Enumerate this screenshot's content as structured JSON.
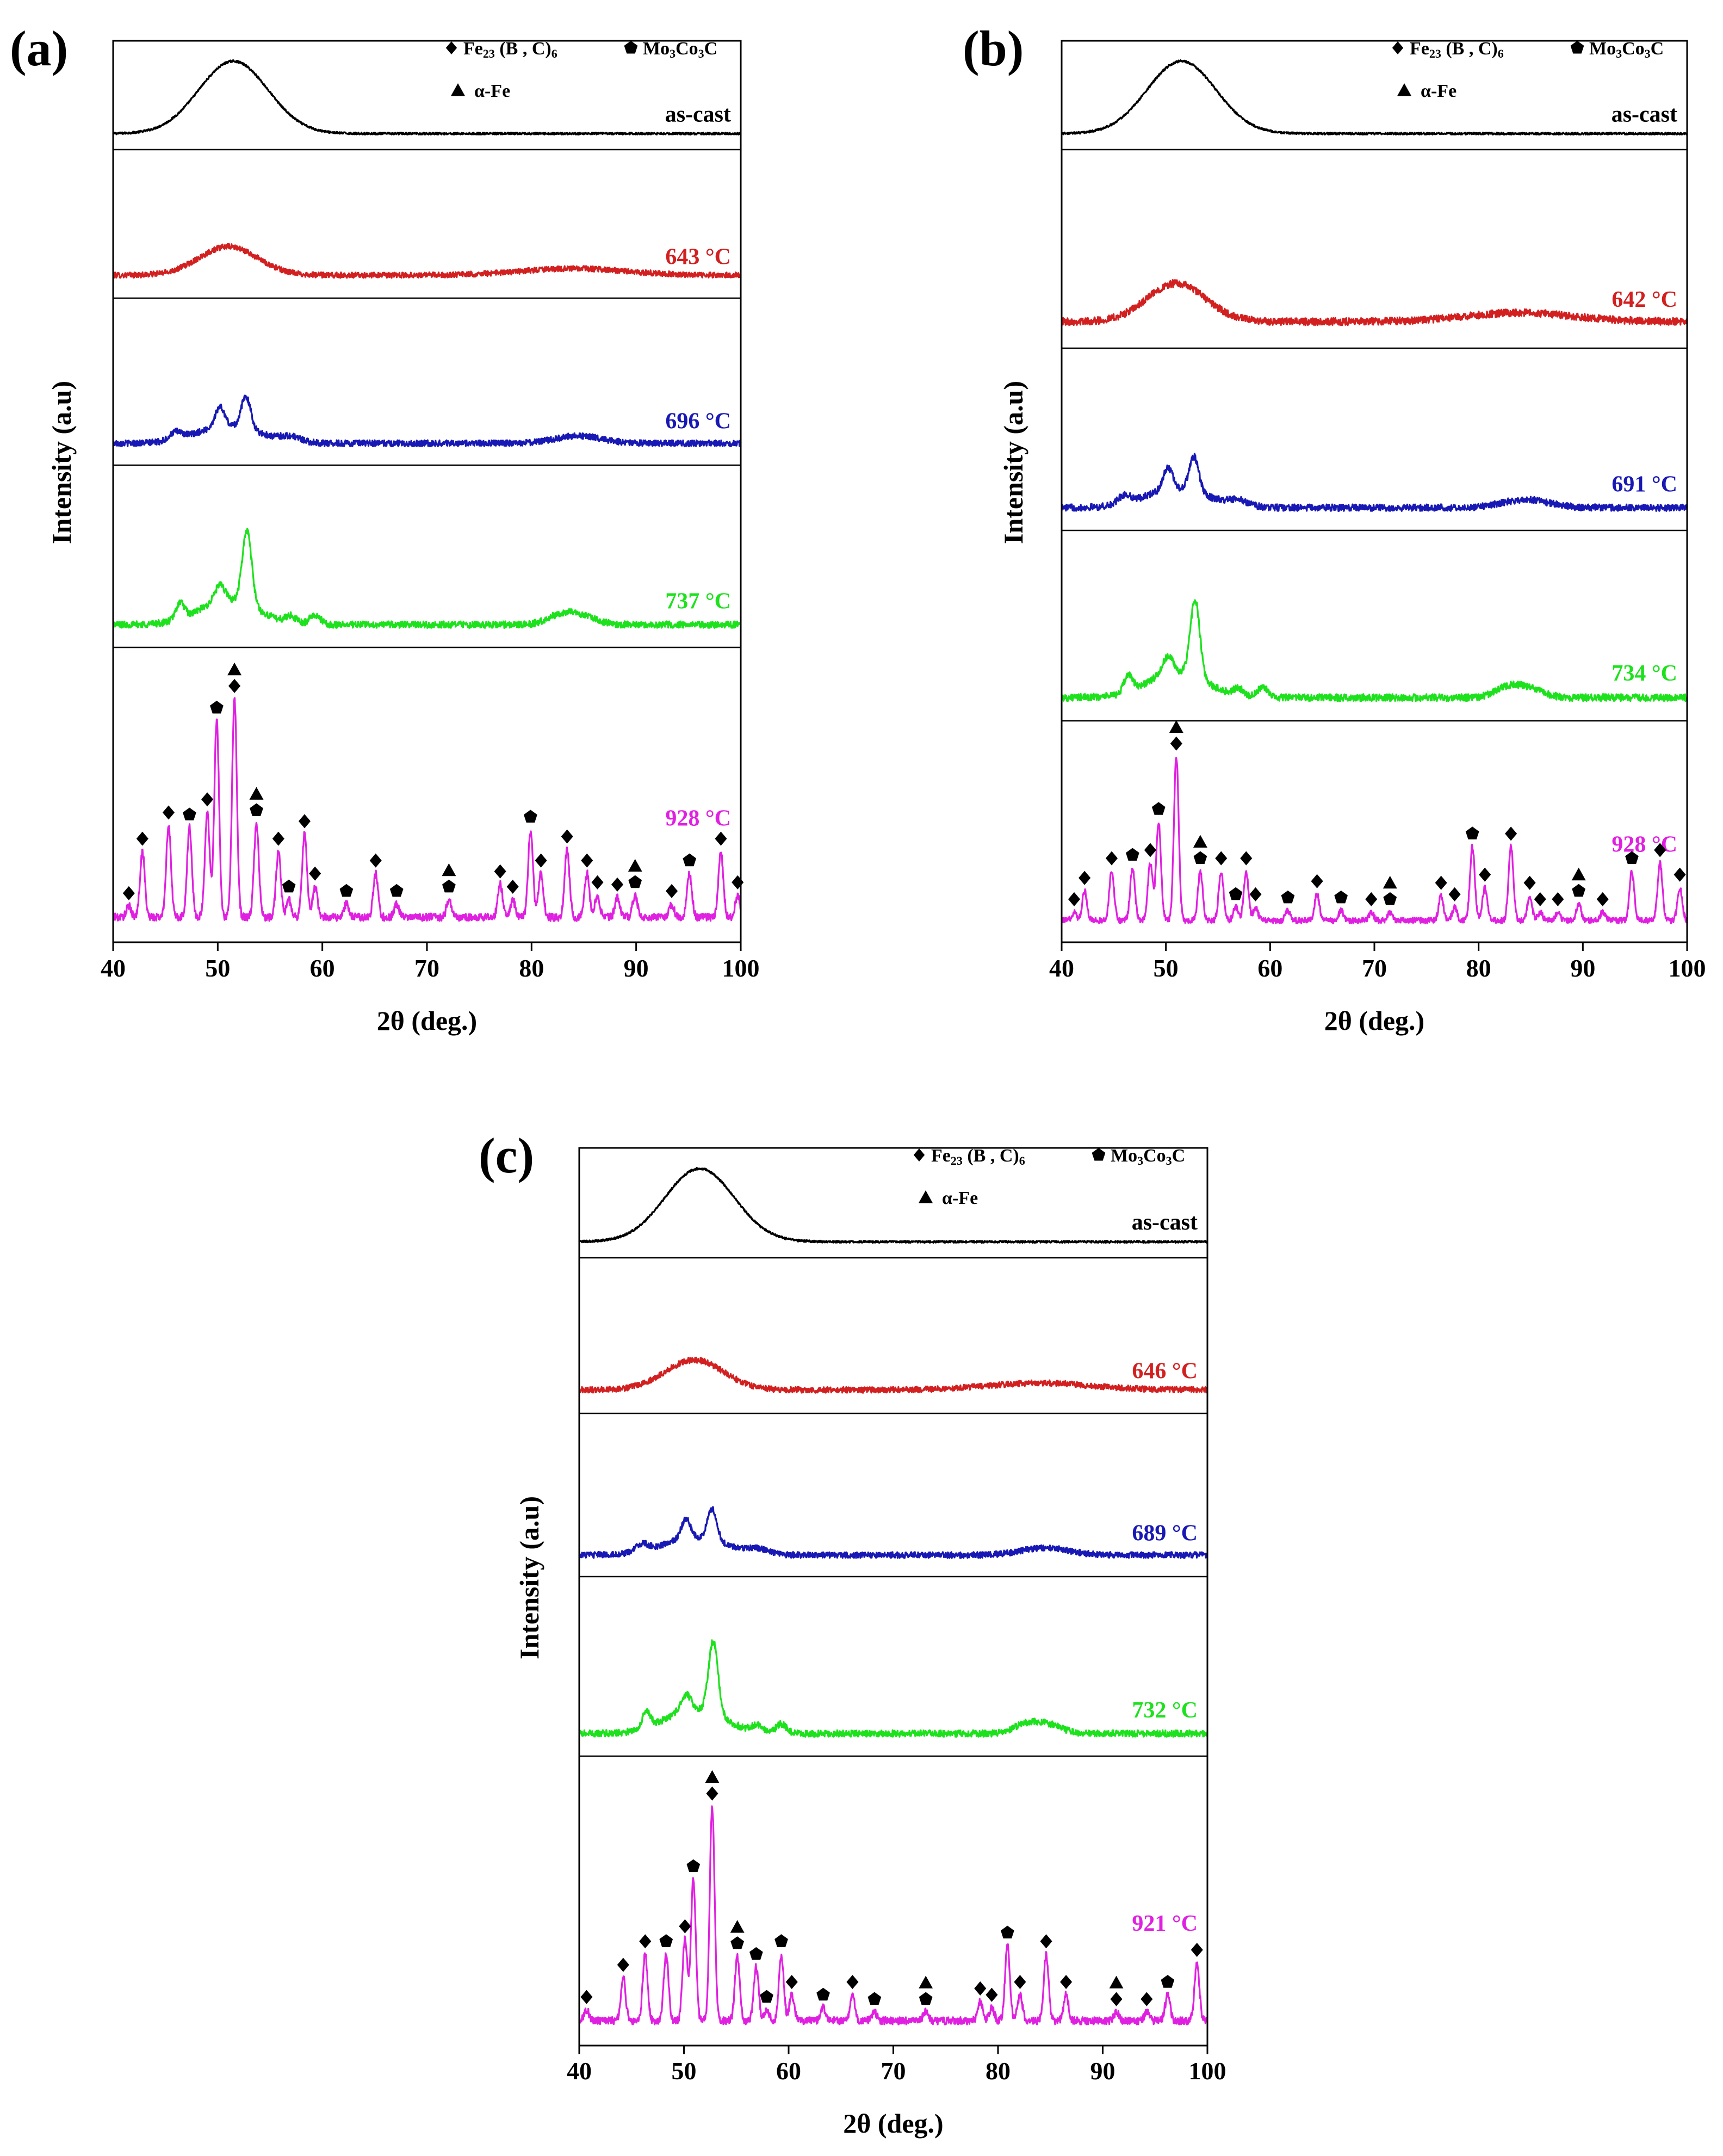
{
  "chart_data": [
    {
      "type": "line",
      "panel_label": "(a)",
      "xlabel": "2θ (deg.)",
      "ylabel": "Intensity (a.u)",
      "xlim": [
        40,
        100
      ],
      "xticks": [
        "40",
        "50",
        "60",
        "70",
        "80",
        "90",
        "100"
      ],
      "legend": {
        "placement": "top-right",
        "entries": [
          {
            "symbol": "diamond",
            "label": "Fe23 (B , C)6",
            "main": "Fe",
            "sub1": "23",
            "mid": " (B , C)",
            "sub2": "6"
          },
          {
            "symbol": "pentagon",
            "label": "Mo3Co3C",
            "main": "Mo",
            "sub1": "3",
            "mid": "Co",
            "sub2": "3",
            "tail": "C"
          },
          {
            "symbol": "triangle",
            "label": "α-Fe"
          }
        ]
      },
      "series": [
        {
          "name": "as-cast",
          "color": "#000000",
          "profile": "amorphous"
        },
        {
          "name": "643 °C",
          "color": "#d22020",
          "profile": "low"
        },
        {
          "name": "696 °C",
          "color": "#1818b4",
          "profile": "mid"
        },
        {
          "name": "737 °C",
          "color": "#1ee11e",
          "profile": "high"
        },
        {
          "name": "928 °C",
          "color": "#e020e0",
          "profile": "crystal",
          "peaks": [
            [
              41.5,
              0.05
            ],
            [
              42.8,
              0.3
            ],
            [
              45.3,
              0.42
            ],
            [
              47.3,
              0.41
            ],
            [
              49.0,
              0.48
            ],
            [
              49.9,
              0.9
            ],
            [
              51.6,
              1.0
            ],
            [
              53.7,
              0.43
            ],
            [
              55.8,
              0.3
            ],
            [
              56.8,
              0.08
            ],
            [
              58.3,
              0.38
            ],
            [
              59.3,
              0.14
            ],
            [
              62.3,
              0.06
            ],
            [
              65.1,
              0.2
            ],
            [
              67.1,
              0.06
            ],
            [
              72.1,
              0.08
            ],
            [
              77.0,
              0.15
            ],
            [
              78.2,
              0.08
            ],
            [
              79.9,
              0.4
            ],
            [
              80.9,
              0.2
            ],
            [
              83.4,
              0.31
            ],
            [
              85.3,
              0.2
            ],
            [
              86.3,
              0.1
            ],
            [
              88.2,
              0.09
            ],
            [
              89.9,
              0.1
            ],
            [
              93.4,
              0.06
            ],
            [
              95.1,
              0.2
            ],
            [
              98.1,
              0.3
            ],
            [
              99.7,
              0.1
            ]
          ]
        }
      ],
      "markers": [
        {
          "x": 41.5,
          "h": 0.05,
          "s": [
            "d"
          ]
        },
        {
          "x": 42.8,
          "h": 0.3,
          "s": [
            "d"
          ]
        },
        {
          "x": 45.3,
          "h": 0.42,
          "s": [
            "d"
          ]
        },
        {
          "x": 47.3,
          "h": 0.41,
          "s": [
            "p"
          ]
        },
        {
          "x": 49.0,
          "h": 0.48,
          "s": [
            "d"
          ]
        },
        {
          "x": 49.9,
          "h": 0.9,
          "s": [
            "p"
          ]
        },
        {
          "x": 51.6,
          "h": 1.0,
          "s": [
            "d",
            "t"
          ]
        },
        {
          "x": 53.7,
          "h": 0.43,
          "s": [
            "p",
            "t"
          ]
        },
        {
          "x": 55.8,
          "h": 0.3,
          "s": [
            "d"
          ]
        },
        {
          "x": 56.8,
          "h": 0.08,
          "s": [
            "p"
          ]
        },
        {
          "x": 58.3,
          "h": 0.38,
          "s": [
            "d"
          ]
        },
        {
          "x": 59.3,
          "h": 0.14,
          "s": [
            "d"
          ]
        },
        {
          "x": 62.3,
          "h": 0.06,
          "s": [
            "p"
          ]
        },
        {
          "x": 65.1,
          "h": 0.2,
          "s": [
            "d"
          ]
        },
        {
          "x": 67.1,
          "h": 0.06,
          "s": [
            "p"
          ]
        },
        {
          "x": 72.1,
          "h": 0.08,
          "s": [
            "p",
            "t"
          ]
        },
        {
          "x": 77.0,
          "h": 0.15,
          "s": [
            "d"
          ]
        },
        {
          "x": 78.2,
          "h": 0.08,
          "s": [
            "d"
          ]
        },
        {
          "x": 79.9,
          "h": 0.4,
          "s": [
            "p"
          ]
        },
        {
          "x": 80.9,
          "h": 0.2,
          "s": [
            "d"
          ]
        },
        {
          "x": 83.4,
          "h": 0.31,
          "s": [
            "d"
          ]
        },
        {
          "x": 85.3,
          "h": 0.2,
          "s": [
            "d"
          ]
        },
        {
          "x": 86.3,
          "h": 0.1,
          "s": [
            "d"
          ]
        },
        {
          "x": 88.2,
          "h": 0.09,
          "s": [
            "d"
          ]
        },
        {
          "x": 89.9,
          "h": 0.1,
          "s": [
            "p",
            "t"
          ]
        },
        {
          "x": 93.4,
          "h": 0.06,
          "s": [
            "d"
          ]
        },
        {
          "x": 95.1,
          "h": 0.2,
          "s": [
            "p"
          ]
        },
        {
          "x": 98.1,
          "h": 0.3,
          "s": [
            "d"
          ]
        },
        {
          "x": 99.7,
          "h": 0.1,
          "s": [
            "d"
          ]
        }
      ]
    },
    {
      "type": "line",
      "panel_label": "(b)",
      "xlabel": "2θ (deg.)",
      "ylabel": "Intensity (a.u)",
      "xlim": [
        40,
        100
      ],
      "xticks": [
        "40",
        "50",
        "60",
        "70",
        "80",
        "90",
        "100"
      ],
      "legend": {
        "placement": "top-right",
        "entries": [
          {
            "symbol": "diamond",
            "label": "Fe23 (B , C)6",
            "main": "Fe",
            "sub1": "23",
            "mid": " (B , C)",
            "sub2": "6"
          },
          {
            "symbol": "pentagon",
            "label": "Mo3Co3C",
            "main": "Mo",
            "sub1": "3",
            "mid": "Co",
            "sub2": "3",
            "tail": "C"
          },
          {
            "symbol": "triangle",
            "label": "α-Fe"
          }
        ]
      },
      "series": [
        {
          "name": "as-cast",
          "color": "#000000",
          "profile": "amorphous"
        },
        {
          "name": "642 °C",
          "color": "#d22020",
          "profile": "low"
        },
        {
          "name": "691 °C",
          "color": "#1818b4",
          "profile": "mid"
        },
        {
          "name": "734 °C",
          "color": "#1ee11e",
          "profile": "high"
        },
        {
          "name": "928 °C",
          "color": "#e020e0",
          "profile": "crystal",
          "peaks": [
            [
              41.2,
              0.05
            ],
            [
              42.2,
              0.18
            ],
            [
              44.8,
              0.3
            ],
            [
              46.8,
              0.32
            ],
            [
              48.5,
              0.35
            ],
            [
              49.3,
              0.6
            ],
            [
              51.0,
              1.0
            ],
            [
              53.3,
              0.3
            ],
            [
              55.3,
              0.3
            ],
            [
              56.7,
              0.08
            ],
            [
              57.7,
              0.3
            ],
            [
              58.6,
              0.08
            ],
            [
              61.7,
              0.06
            ],
            [
              64.5,
              0.16
            ],
            [
              66.8,
              0.06
            ],
            [
              69.7,
              0.05
            ],
            [
              71.5,
              0.05
            ],
            [
              76.4,
              0.15
            ],
            [
              77.7,
              0.08
            ],
            [
              79.4,
              0.45
            ],
            [
              80.6,
              0.2
            ],
            [
              83.1,
              0.45
            ],
            [
              84.9,
              0.15
            ],
            [
              85.9,
              0.05
            ],
            [
              87.6,
              0.05
            ],
            [
              89.6,
              0.1
            ],
            [
              91.9,
              0.05
            ],
            [
              94.7,
              0.3
            ],
            [
              97.4,
              0.35
            ],
            [
              99.3,
              0.2
            ]
          ]
        }
      ],
      "markers": [
        {
          "x": 41.2,
          "h": 0.05,
          "s": [
            "d"
          ]
        },
        {
          "x": 42.2,
          "h": 0.18,
          "s": [
            "d"
          ]
        },
        {
          "x": 44.8,
          "h": 0.3,
          "s": [
            "d"
          ]
        },
        {
          "x": 46.8,
          "h": 0.32,
          "s": [
            "p"
          ]
        },
        {
          "x": 48.5,
          "h": 0.35,
          "s": [
            "d"
          ]
        },
        {
          "x": 49.3,
          "h": 0.6,
          "s": [
            "p"
          ]
        },
        {
          "x": 51.0,
          "h": 1.0,
          "s": [
            "d",
            "t"
          ]
        },
        {
          "x": 53.3,
          "h": 0.3,
          "s": [
            "p",
            "t"
          ]
        },
        {
          "x": 55.3,
          "h": 0.3,
          "s": [
            "d"
          ]
        },
        {
          "x": 56.7,
          "h": 0.08,
          "s": [
            "p"
          ]
        },
        {
          "x": 57.7,
          "h": 0.3,
          "s": [
            "d"
          ]
        },
        {
          "x": 58.6,
          "h": 0.08,
          "s": [
            "d"
          ]
        },
        {
          "x": 61.7,
          "h": 0.06,
          "s": [
            "p"
          ]
        },
        {
          "x": 64.5,
          "h": 0.16,
          "s": [
            "d"
          ]
        },
        {
          "x": 66.8,
          "h": 0.06,
          "s": [
            "p"
          ]
        },
        {
          "x": 69.7,
          "h": 0.05,
          "s": [
            "d"
          ]
        },
        {
          "x": 71.5,
          "h": 0.05,
          "s": [
            "p",
            "t"
          ]
        },
        {
          "x": 76.4,
          "h": 0.15,
          "s": [
            "d"
          ]
        },
        {
          "x": 77.7,
          "h": 0.08,
          "s": [
            "d"
          ]
        },
        {
          "x": 79.4,
          "h": 0.45,
          "s": [
            "p"
          ]
        },
        {
          "x": 80.6,
          "h": 0.2,
          "s": [
            "d"
          ]
        },
        {
          "x": 83.1,
          "h": 0.45,
          "s": [
            "d"
          ]
        },
        {
          "x": 84.9,
          "h": 0.15,
          "s": [
            "d"
          ]
        },
        {
          "x": 85.9,
          "h": 0.05,
          "s": [
            "d"
          ]
        },
        {
          "x": 87.6,
          "h": 0.05,
          "s": [
            "d"
          ]
        },
        {
          "x": 89.6,
          "h": 0.1,
          "s": [
            "p",
            "t"
          ]
        },
        {
          "x": 91.9,
          "h": 0.05,
          "s": [
            "d"
          ]
        },
        {
          "x": 94.7,
          "h": 0.3,
          "s": [
            "p"
          ]
        },
        {
          "x": 97.4,
          "h": 0.35,
          "s": [
            "d"
          ]
        },
        {
          "x": 99.3,
          "h": 0.2,
          "s": [
            "d"
          ]
        }
      ]
    },
    {
      "type": "line",
      "panel_label": "(c)",
      "xlabel": "2θ (deg.)",
      "ylabel": "Intensity (a.u)",
      "xlim": [
        40,
        100
      ],
      "xticks": [
        "40",
        "50",
        "60",
        "70",
        "80",
        "90",
        "100"
      ],
      "legend": {
        "placement": "top-right",
        "entries": [
          {
            "symbol": "diamond",
            "label": "Fe23 (B , C)6",
            "main": "Fe",
            "sub1": "23",
            "mid": " (B , C)",
            "sub2": "6"
          },
          {
            "symbol": "pentagon",
            "label": "Mo3Co3C",
            "main": "Mo",
            "sub1": "3",
            "mid": "Co",
            "sub2": "3",
            "tail": "C"
          },
          {
            "symbol": "triangle",
            "label": "α-Fe"
          }
        ]
      },
      "series": [
        {
          "name": "as-cast",
          "color": "#000000",
          "profile": "amorphous"
        },
        {
          "name": "646 °C",
          "color": "#d22020",
          "profile": "low"
        },
        {
          "name": "689 °C",
          "color": "#1818b4",
          "profile": "mid"
        },
        {
          "name": "732 °C",
          "color": "#1ee11e",
          "profile": "high"
        },
        {
          "name": "921 °C",
          "color": "#e020e0",
          "profile": "crystal",
          "peaks": [
            [
              40.7,
              0.05
            ],
            [
              44.2,
              0.2
            ],
            [
              46.3,
              0.31
            ],
            [
              48.3,
              0.31
            ],
            [
              50.1,
              0.38
            ],
            [
              50.9,
              0.66
            ],
            [
              52.7,
              1.0
            ],
            [
              55.1,
              0.3
            ],
            [
              56.9,
              0.25
            ],
            [
              57.9,
              0.05
            ],
            [
              59.3,
              0.31
            ],
            [
              60.3,
              0.12
            ],
            [
              63.3,
              0.06
            ],
            [
              66.1,
              0.12
            ],
            [
              68.2,
              0.04
            ],
            [
              73.1,
              0.04
            ],
            [
              78.3,
              0.09
            ],
            [
              79.4,
              0.06
            ],
            [
              80.9,
              0.35
            ],
            [
              82.1,
              0.12
            ],
            [
              84.6,
              0.31
            ],
            [
              86.5,
              0.12
            ],
            [
              91.3,
              0.04
            ],
            [
              94.2,
              0.04
            ],
            [
              96.2,
              0.12
            ],
            [
              99.0,
              0.27
            ]
          ]
        }
      ],
      "markers": [
        {
          "x": 40.7,
          "h": 0.05,
          "s": [
            "d"
          ]
        },
        {
          "x": 44.2,
          "h": 0.2,
          "s": [
            "d"
          ]
        },
        {
          "x": 46.3,
          "h": 0.31,
          "s": [
            "d"
          ]
        },
        {
          "x": 48.3,
          "h": 0.31,
          "s": [
            "p"
          ]
        },
        {
          "x": 50.1,
          "h": 0.38,
          "s": [
            "d"
          ]
        },
        {
          "x": 50.9,
          "h": 0.66,
          "s": [
            "p"
          ]
        },
        {
          "x": 52.7,
          "h": 1.0,
          "s": [
            "d",
            "t"
          ]
        },
        {
          "x": 55.1,
          "h": 0.3,
          "s": [
            "p",
            "t"
          ]
        },
        {
          "x": 56.9,
          "h": 0.25,
          "s": [
            "p"
          ]
        },
        {
          "x": 57.9,
          "h": 0.05,
          "s": [
            "p"
          ]
        },
        {
          "x": 59.3,
          "h": 0.31,
          "s": [
            "p"
          ]
        },
        {
          "x": 60.3,
          "h": 0.12,
          "s": [
            "d"
          ]
        },
        {
          "x": 63.3,
          "h": 0.06,
          "s": [
            "p"
          ]
        },
        {
          "x": 66.1,
          "h": 0.12,
          "s": [
            "d"
          ]
        },
        {
          "x": 68.2,
          "h": 0.04,
          "s": [
            "p"
          ]
        },
        {
          "x": 73.1,
          "h": 0.04,
          "s": [
            "p",
            "t"
          ]
        },
        {
          "x": 78.3,
          "h": 0.09,
          "s": [
            "d"
          ]
        },
        {
          "x": 79.4,
          "h": 0.06,
          "s": [
            "d"
          ]
        },
        {
          "x": 80.9,
          "h": 0.35,
          "s": [
            "p"
          ]
        },
        {
          "x": 82.1,
          "h": 0.12,
          "s": [
            "d"
          ]
        },
        {
          "x": 84.6,
          "h": 0.31,
          "s": [
            "d"
          ]
        },
        {
          "x": 86.5,
          "h": 0.12,
          "s": [
            "d"
          ]
        },
        {
          "x": 91.3,
          "h": 0.04,
          "s": [
            "d",
            "t"
          ]
        },
        {
          "x": 94.2,
          "h": 0.04,
          "s": [
            "d"
          ]
        },
        {
          "x": 96.2,
          "h": 0.12,
          "s": [
            "p"
          ]
        },
        {
          "x": 99.0,
          "h": 0.27,
          "s": [
            "d"
          ]
        }
      ]
    }
  ]
}
